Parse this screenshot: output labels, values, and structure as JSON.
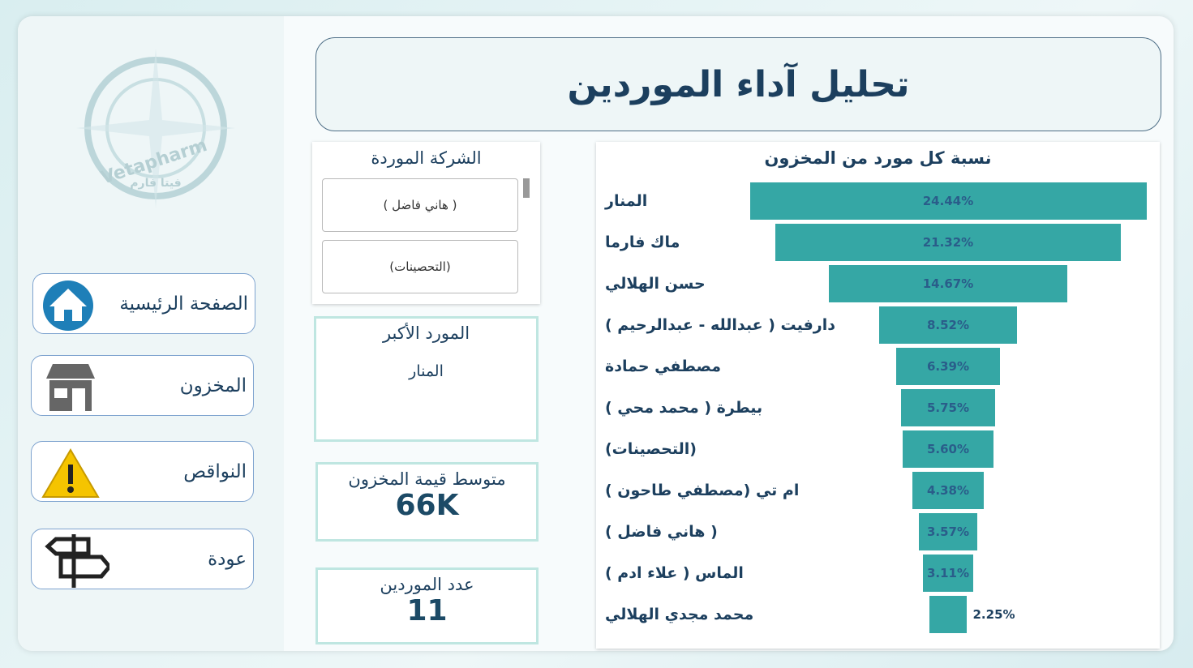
{
  "logo": {
    "name": "Vetapharm",
    "name_ar": "فيتا فارم"
  },
  "header": {
    "title": "تحليل آداء الموردين"
  },
  "nav": [
    "الصفحة الرئيسية",
    "المخزون",
    "النواقص",
    "عودة"
  ],
  "slicer": {
    "title": "الشركة الموردة",
    "items": [
      "( هاني فاضل )",
      "(التحصينات)"
    ]
  },
  "cards": [
    {
      "title": "المورد الأكبر",
      "value": "المنار"
    },
    {
      "title": "متوسط قيمة المخزون",
      "value": "66K"
    },
    {
      "title": "عدد الموردين",
      "value": 11
    }
  ],
  "chart_data": {
    "type": "funnel",
    "title": "نسبة كل مورد من المخزون",
    "color": "#35a7a5",
    "categories": [
      "المنار",
      "ماك فارما",
      "حسن الهلالي",
      "دارفيت ( عبدالله - عبدالرحيم )",
      "مصطفي حمادة",
      "بيطرة ( محمد محي )",
      "(التحصينات)",
      "ام تي (مصطفي طاحون )",
      "( هاني فاضل )",
      "الماس ( علاء ادم )",
      "محمد مجدي الهلالي"
    ],
    "values": [
      24.44,
      21.32,
      14.67,
      8.52,
      6.39,
      5.75,
      5.6,
      4.38,
      3.57,
      3.11,
      2.25
    ],
    "value_labels": [
      "24.44%",
      "21.32%",
      "14.67%",
      "8.52%",
      "6.39%",
      "5.75%",
      "5.60%",
      "4.38%",
      "3.57%",
      "3.11%",
      "2.25%"
    ]
  }
}
